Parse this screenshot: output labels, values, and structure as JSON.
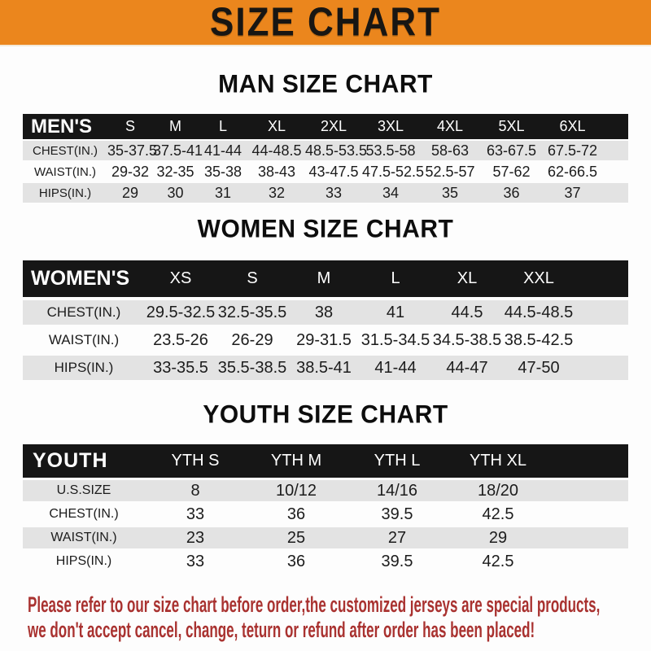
{
  "banner": {
    "title": "SIZE CHART"
  },
  "colors": {
    "banner_bg": "#EB861D",
    "table_header_bg": "#161616",
    "row_alt_bg": "#E3E3E3",
    "note_text": "#A93230"
  },
  "chart_data": [
    {
      "type": "table",
      "title": "MAN SIZE CHART",
      "corner_label": "MEN'S",
      "columns": [
        "S",
        "M",
        "L",
        "XL",
        "2XL",
        "3XL",
        "4XL",
        "5XL",
        "6XL"
      ],
      "rows": [
        {
          "label": "CHEST(IN.)",
          "values": [
            "35-37.5",
            "37.5-41",
            "41-44",
            "44-48.5",
            "48.5-53.5",
            "53.5-58",
            "58-63",
            "63-67.5",
            "67.5-72"
          ]
        },
        {
          "label": "WAIST(IN.)",
          "values": [
            "29-32",
            "32-35",
            "35-38",
            "38-43",
            "43-47.5",
            "47.5-52.5",
            "52.5-57",
            "57-62",
            "62-66.5"
          ]
        },
        {
          "label": "HIPS(IN.)",
          "values": [
            "29",
            "30",
            "31",
            "32",
            "33",
            "34",
            "35",
            "36",
            "37"
          ]
        }
      ]
    },
    {
      "type": "table",
      "title": "WOMEN SIZE CHART",
      "corner_label": "WOMEN'S",
      "columns": [
        "XS",
        "S",
        "M",
        "L",
        "XL",
        "XXL"
      ],
      "rows": [
        {
          "label": "CHEST(IN.)",
          "values": [
            "29.5-32.5",
            "32.5-35.5",
            "38",
            "41",
            "44.5",
            "44.5-48.5"
          ]
        },
        {
          "label": "WAIST(IN.)",
          "values": [
            "23.5-26",
            "26-29",
            "29-31.5",
            "31.5-34.5",
            "34.5-38.5",
            "38.5-42.5"
          ]
        },
        {
          "label": "HIPS(IN.)",
          "values": [
            "33-35.5",
            "35.5-38.5",
            "38.5-41",
            "41-44",
            "44-47",
            "47-50"
          ]
        }
      ]
    },
    {
      "type": "table",
      "title": "YOUTH SIZE CHART",
      "corner_label": "YOUTH",
      "columns": [
        "YTH S",
        "YTH M",
        "YTH L",
        "YTH XL"
      ],
      "rows": [
        {
          "label": "U.S.SIZE",
          "values": [
            "8",
            "10/12",
            "14/16",
            "18/20"
          ]
        },
        {
          "label": "CHEST(IN.)",
          "values": [
            "33",
            "36",
            "39.5",
            "42.5"
          ]
        },
        {
          "label": "WAIST(IN.)",
          "values": [
            "23",
            "25",
            "27",
            "29"
          ]
        },
        {
          "label": "HIPS(IN.)",
          "values": [
            "33",
            "36",
            "39.5",
            "42.5"
          ]
        }
      ]
    }
  ],
  "note": {
    "line1": "Please refer to our size chart before order,the customized jerseys are special products,",
    "line2": "we don't accept cancel, change, teturn or refund after order has been placed!"
  }
}
